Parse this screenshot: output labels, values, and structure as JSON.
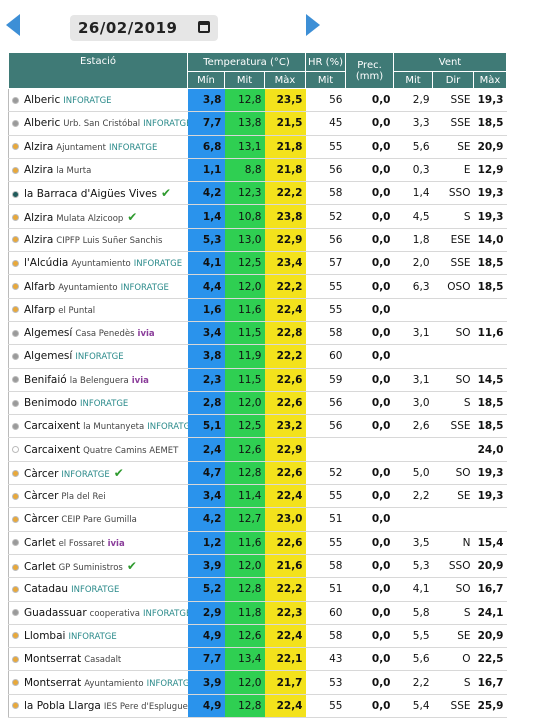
{
  "date": "26/02/2019",
  "header": {
    "station": "Estació",
    "temp": "Temperatura (°C)",
    "hr": "HR (%)",
    "prec": "Prec. (mm)",
    "wind": "Vent",
    "min": "Mín",
    "mit": "Mit",
    "max": "Màx",
    "hr_mit": "Mit",
    "wind_mit": "Mit",
    "dir": "Dir",
    "wind_max": "Màx"
  },
  "rows": [
    {
      "dot": "#9a9a9a",
      "name": "Alberic",
      "tag": "INFORATGE",
      "min": "3,8",
      "mit": "12,8",
      "max": "23,5",
      "hr": "56",
      "prec": "0,0",
      "wind": "2,9",
      "dir": "SSE",
      "gust": "19,3"
    },
    {
      "dot": "#9a9a9a",
      "name": "Alberic",
      "sub": "Urb. San Cristóbal",
      "tag": "INFORATGE",
      "min": "7,7",
      "mit": "13,8",
      "max": "21,5",
      "hr": "45",
      "prec": "0,0",
      "wind": "3,3",
      "dir": "SSE",
      "gust": "18,5"
    },
    {
      "dot": "#e8a83a",
      "name": "Alzira",
      "sub": "Ajuntament",
      "tag": "INFORATGE",
      "min": "6,8",
      "mit": "13,1",
      "max": "21,8",
      "hr": "55",
      "prec": "0,0",
      "wind": "5,6",
      "dir": "SE",
      "gust": "20,9"
    },
    {
      "dot": "#e8a83a",
      "name": "Alzira",
      "sub": "la Murta",
      "min": "1,1",
      "mit": "8,8",
      "max": "21,8",
      "hr": "56",
      "prec": "0,0",
      "wind": "0,3",
      "dir": "E",
      "gust": "12,9"
    },
    {
      "dot": "#1f5a5a",
      "name": "la Barraca d'Aigües Vives",
      "check": true,
      "min": "4,2",
      "mit": "12,3",
      "max": "22,2",
      "hr": "58",
      "prec": "0,0",
      "wind": "1,4",
      "dir": "SSO",
      "gust": "19,3"
    },
    {
      "dot": "#e8a83a",
      "name": "Alzira",
      "sub": "Mulata Alzicoop",
      "check": true,
      "min": "1,4",
      "mit": "10,8",
      "max": "23,8",
      "hr": "52",
      "prec": "0,0",
      "wind": "4,5",
      "dir": "S",
      "gust": "19,3"
    },
    {
      "dot": "#e8a83a",
      "name": "Alzira",
      "sub": "CIPFP Luis Suñer Sanchis",
      "min": "5,3",
      "mit": "13,0",
      "max": "22,9",
      "hr": "56",
      "prec": "0,0",
      "wind": "1,8",
      "dir": "ESE",
      "gust": "14,0"
    },
    {
      "dot": "#e8a83a",
      "name": "l'Alcúdia",
      "sub": "Ayuntamiento",
      "tag": "INFORATGE",
      "min": "4,1",
      "mit": "12,5",
      "max": "23,4",
      "hr": "57",
      "prec": "0,0",
      "wind": "2,0",
      "dir": "SSE",
      "gust": "18,5"
    },
    {
      "dot": "#e8a83a",
      "name": "Alfarb",
      "sub": "Ayuntamiento",
      "tag": "INFORATGE",
      "min": "4,4",
      "mit": "12,0",
      "max": "22,2",
      "hr": "55",
      "prec": "0,0",
      "wind": "6,3",
      "dir": "OSO",
      "gust": "18,5"
    },
    {
      "dot": "#e8a83a",
      "name": "Alfarp",
      "sub": "el Puntal",
      "min": "1,6",
      "mit": "11,6",
      "max": "22,4",
      "hr": "55",
      "prec": "0,0"
    },
    {
      "dot": "#9a9a9a",
      "name": "Algemesí",
      "sub": "Casa Penedès",
      "tag": "ivia",
      "min": "3,4",
      "mit": "11,5",
      "max": "22,8",
      "hr": "58",
      "prec": "0,0",
      "wind": "3,1",
      "dir": "SO",
      "gust": "11,6"
    },
    {
      "dot": "#9a9a9a",
      "name": "Algemesí",
      "tag": "INFORATGE",
      "min": "3,8",
      "mit": "11,9",
      "max": "22,2",
      "hr": "60",
      "prec": "0,0"
    },
    {
      "dot": "#9a9a9a",
      "name": "Benifaió",
      "sub": "la Belenguera",
      "tag": "ivia",
      "min": "2,3",
      "mit": "11,5",
      "max": "22,6",
      "hr": "59",
      "prec": "0,0",
      "wind": "3,1",
      "dir": "SO",
      "gust": "14,5"
    },
    {
      "dot": "#9a9a9a",
      "name": "Benimodo",
      "tag": "INFORATGE",
      "min": "2,8",
      "mit": "12,0",
      "max": "22,6",
      "hr": "56",
      "prec": "0,0",
      "wind": "3,0",
      "dir": "S",
      "gust": "18,5"
    },
    {
      "dot": "#9a9a9a",
      "name": "Carcaixent",
      "sub": "la Muntanyeta",
      "tag": "INFORATGE",
      "min": "5,1",
      "mit": "12,5",
      "max": "23,2",
      "hr": "56",
      "prec": "0,0",
      "wind": "2,6",
      "dir": "SSE",
      "gust": "18,5"
    },
    {
      "dot": "#ffffff",
      "name": "Carcaixent",
      "sub": "Quatre Camins AEMET",
      "min": "2,4",
      "mit": "12,6",
      "max": "22,9",
      "gust": "24,0"
    },
    {
      "dot": "#e8a83a",
      "name": "Càrcer",
      "tag": "INFORATGE",
      "check": true,
      "min": "4,7",
      "mit": "12,8",
      "max": "22,6",
      "hr": "52",
      "prec": "0,0",
      "wind": "5,0",
      "dir": "SO",
      "gust": "19,3"
    },
    {
      "dot": "#e8a83a",
      "name": "Càrcer",
      "sub": "Pla del Rei",
      "min": "3,4",
      "mit": "11,4",
      "max": "22,4",
      "hr": "55",
      "prec": "0,0",
      "wind": "2,2",
      "dir": "SE",
      "gust": "19,3"
    },
    {
      "dot": "#e8a83a",
      "name": "Càrcer",
      "sub": "CEIP Pare Gumilla",
      "min": "4,2",
      "mit": "12,7",
      "max": "23,0",
      "hr": "51",
      "prec": "0,0"
    },
    {
      "dot": "#9a9a9a",
      "name": "Carlet",
      "sub": "el Fossaret",
      "tag": "ivia",
      "min": "1,2",
      "mit": "11,6",
      "max": "22,6",
      "hr": "55",
      "prec": "0,0",
      "wind": "3,5",
      "dir": "N",
      "gust": "15,4"
    },
    {
      "dot": "#e8a83a",
      "name": "Carlet",
      "sub": "GP Suministros",
      "check": true,
      "min": "3,9",
      "mit": "12,0",
      "max": "21,6",
      "hr": "58",
      "prec": "0,0",
      "wind": "5,3",
      "dir": "SSO",
      "gust": "20,9"
    },
    {
      "dot": "#e8a83a",
      "name": "Catadau",
      "tag": "INFORATGE",
      "min": "5,2",
      "mit": "12,8",
      "max": "22,2",
      "hr": "51",
      "prec": "0,0",
      "wind": "4,1",
      "dir": "SO",
      "gust": "16,7"
    },
    {
      "dot": "#9a9a9a",
      "name": "Guadassuar",
      "sub": "cooperativa",
      "tag": "INFORATGE",
      "min": "2,9",
      "mit": "11,8",
      "max": "22,3",
      "hr": "60",
      "prec": "0,0",
      "wind": "5,8",
      "dir": "S",
      "gust": "24,1"
    },
    {
      "dot": "#e8a83a",
      "name": "Llombai",
      "tag": "INFORATGE",
      "min": "4,9",
      "mit": "12,6",
      "max": "22,4",
      "hr": "58",
      "prec": "0,0",
      "wind": "5,5",
      "dir": "SE",
      "gust": "20,9"
    },
    {
      "dot": "#e8a83a",
      "name": "Montserrat",
      "sub": "Casadalt",
      "min": "7,7",
      "mit": "13,4",
      "max": "22,1",
      "hr": "43",
      "prec": "0,0",
      "wind": "5,6",
      "dir": "O",
      "gust": "22,5"
    },
    {
      "dot": "#e8a83a",
      "name": "Montserrat",
      "sub": "Ayuntamiento",
      "tag": "INFORATGE",
      "min": "3,9",
      "mit": "12,0",
      "max": "21,7",
      "hr": "53",
      "prec": "0,0",
      "wind": "2,2",
      "dir": "S",
      "gust": "16,7"
    },
    {
      "dot": "#e8a83a",
      "name": "la Pobla Llarga",
      "sub": "IES Pere d'Esplugues",
      "min": "4,9",
      "mit": "12,8",
      "max": "22,4",
      "hr": "55",
      "prec": "0,0",
      "wind": "5,4",
      "dir": "SSE",
      "gust": "25,9"
    }
  ]
}
